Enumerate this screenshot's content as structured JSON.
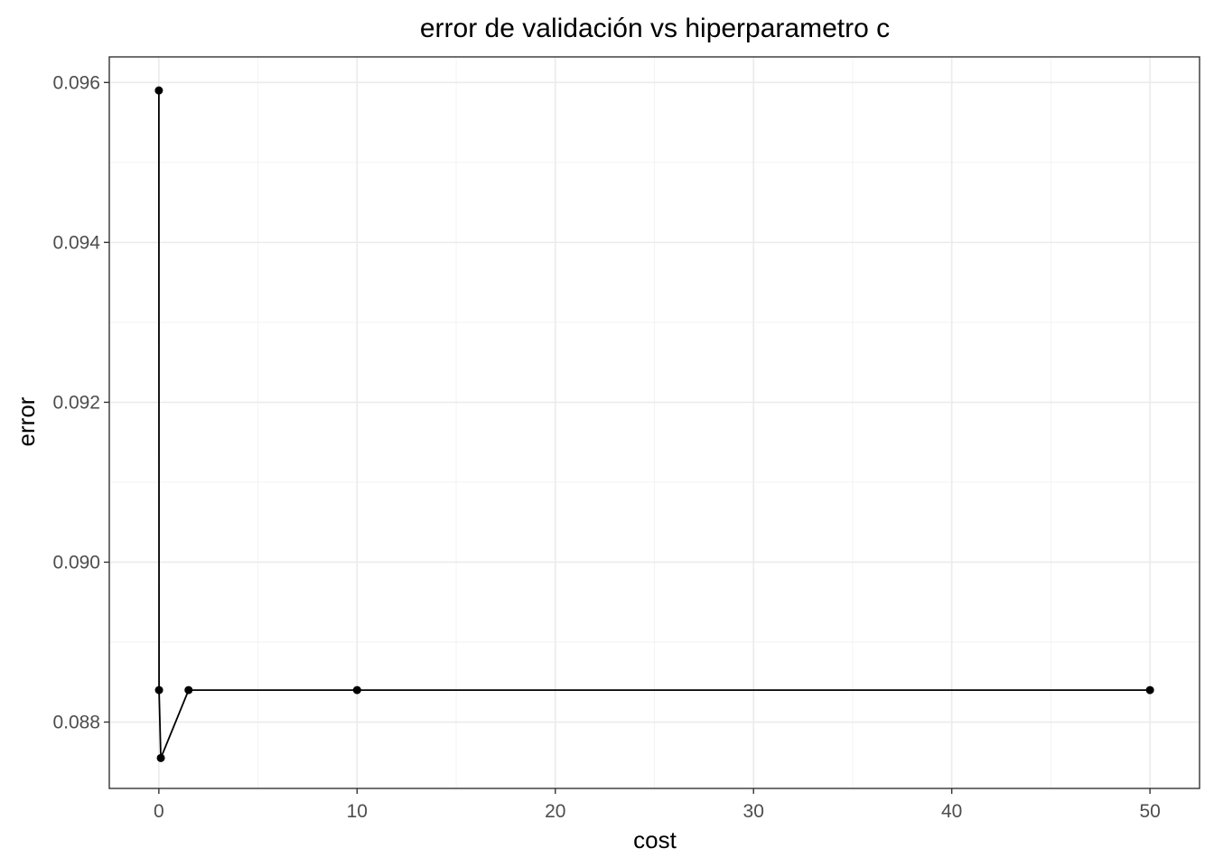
{
  "chart_data": {
    "type": "line",
    "title": "error de validación vs hiperparametro c",
    "xlabel": "cost",
    "ylabel": "error",
    "x": [
      0.001,
      0.01,
      0.1,
      1.5,
      10,
      50
    ],
    "series": [
      {
        "values": [
          0.0959,
          0.0884,
          0.08755,
          0.0884,
          0.0884,
          0.0884
        ]
      }
    ],
    "xlim": [
      -2.5,
      52.5
    ],
    "ylim": [
      0.08717,
      0.09632
    ],
    "xticks": [
      0,
      10,
      20,
      30,
      40,
      50
    ],
    "xtick_labels": [
      "0",
      "10",
      "20",
      "30",
      "40",
      "50"
    ],
    "yticks": [
      0.088,
      0.09,
      0.092,
      0.094,
      0.096
    ],
    "ytick_labels": [
      "0.088",
      "0.090",
      "0.092",
      "0.094",
      "0.096"
    ],
    "grid": true,
    "legend": "none",
    "line_color": "#000000",
    "point_color": "#000000"
  }
}
